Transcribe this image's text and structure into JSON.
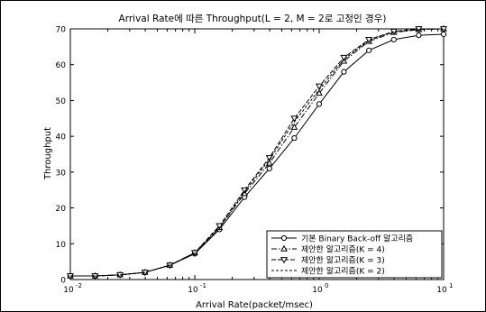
{
  "chart_data": {
    "type": "line",
    "title": "Arrival Rate에 따른 Throughput(L = 2, M = 2로 고정인 경우)",
    "xlabel": "Arrival Rate(packet/msec)",
    "ylabel": "Throughput",
    "xscale": "log",
    "xlim": [
      0.01,
      10
    ],
    "ylim": [
      0,
      70
    ],
    "x_ticks": [
      {
        "value": 0.01,
        "base": "10",
        "exp": "-2"
      },
      {
        "value": 0.1,
        "base": "10",
        "exp": "-1"
      },
      {
        "value": 1,
        "base": "10",
        "exp": "0"
      },
      {
        "value": 10,
        "base": "10",
        "exp": "1"
      }
    ],
    "y_ticks": [
      "0",
      "10",
      "20",
      "30",
      "40",
      "50",
      "60",
      "70"
    ],
    "grid": false,
    "legend_position": "bottom-right",
    "x": [
      0.01,
      0.0158,
      0.0251,
      0.0398,
      0.0631,
      0.1,
      0.158,
      0.251,
      0.398,
      0.631,
      1,
      1.58,
      2.51,
      3.98,
      6.31,
      10
    ],
    "series": [
      {
        "name": "기본 Binary Back-off 알고리즘",
        "marker": "circle",
        "dash": "solid",
        "values": [
          1,
          1,
          1.3,
          2,
          4,
          7.2,
          14,
          23,
          31,
          39.5,
          49,
          58,
          64,
          67,
          68.2,
          68.5
        ]
      },
      {
        "name": "제안한 알고리즘(K = 4)",
        "marker": "triangle-up",
        "dash": "dashdot",
        "values": [
          1,
          1,
          1.3,
          2,
          4,
          7.5,
          14.5,
          24,
          32.5,
          42.5,
          52,
          61,
          66.5,
          69,
          69.8,
          70
        ]
      },
      {
        "name": "제안한 알고리즘(K = 3)",
        "marker": "triangle-down",
        "dash": "dash",
        "values": [
          1,
          1,
          1.3,
          2,
          4,
          7.5,
          15,
          25,
          34,
          45,
          54,
          62,
          67,
          69.3,
          70,
          70
        ]
      },
      {
        "name": "제안한 알고리즘(K = 2)",
        "marker": "none",
        "dash": "dashed",
        "values": [
          1,
          1,
          1.3,
          2,
          4,
          7.4,
          14.5,
          24.5,
          33.5,
          44,
          53,
          61.5,
          66.8,
          69.2,
          69.8,
          70
        ]
      }
    ]
  }
}
